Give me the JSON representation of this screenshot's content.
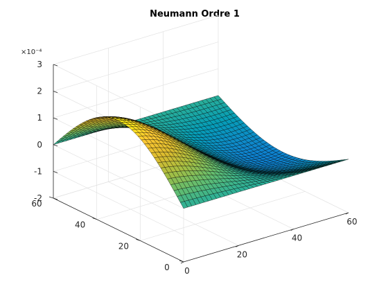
{
  "chart_data": {
    "type": "surface",
    "title": "Neumann Ordre 1",
    "x_range": [
      0,
      60
    ],
    "y_range": [
      0,
      60
    ],
    "z_range": [
      -0.0002,
      0.0003
    ],
    "x_ticks": [
      0,
      20,
      40,
      60
    ],
    "y_ticks": [
      0,
      20,
      40,
      60
    ],
    "z_ticks": [
      -2,
      -1,
      0,
      1,
      2,
      3
    ],
    "z_tick_labels": [
      "-2",
      "-1",
      "0",
      "1",
      "2",
      "3"
    ],
    "z_scale_label": "×10⁻⁴",
    "colormap": "parula",
    "mesh_resolution": 41,
    "surface_description": "u(x,y) ≈ A·(1 − x/60)·sin(π·y/60), peak ≈ 2.2e-4 at x=0,y≈30, zero at x=60 and along y=0 and y=60",
    "peak_value": 0.00022,
    "grid": true
  }
}
